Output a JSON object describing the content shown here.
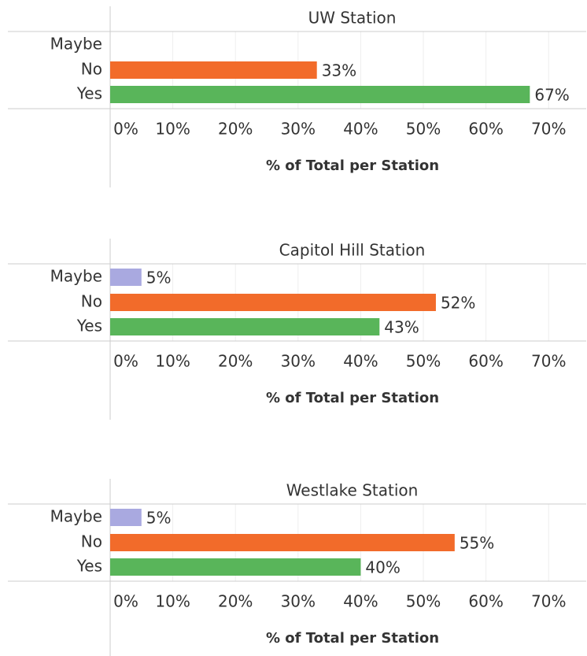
{
  "chart_data": [
    {
      "type": "bar",
      "title": "UW Station",
      "categories": [
        "Maybe",
        "No",
        "Yes"
      ],
      "values": [
        null,
        33,
        67
      ],
      "value_labels": [
        null,
        "33%",
        "67%"
      ],
      "colors": [
        "#a9a9e0",
        "#f26b2a",
        "#59b55a"
      ],
      "xlabel": "% of Total per Station",
      "xlim": [
        0,
        76
      ],
      "xticks": [
        {
          "value": 0,
          "label": "0%"
        },
        {
          "value": 10,
          "label": "10%"
        },
        {
          "value": 20,
          "label": "20%"
        },
        {
          "value": 30,
          "label": "30%"
        },
        {
          "value": 40,
          "label": "40%"
        },
        {
          "value": 50,
          "label": "50%"
        },
        {
          "value": 60,
          "label": "60%"
        },
        {
          "value": 70,
          "label": "70%"
        }
      ],
      "grid": true
    },
    {
      "type": "bar",
      "title": "Capitol Hill Station",
      "categories": [
        "Maybe",
        "No",
        "Yes"
      ],
      "values": [
        5,
        52,
        43
      ],
      "value_labels": [
        "5%",
        "52%",
        "43%"
      ],
      "colors": [
        "#a9a9e0",
        "#f26b2a",
        "#59b55a"
      ],
      "xlabel": "% of Total per Station",
      "xlim": [
        0,
        76
      ],
      "xticks": [
        {
          "value": 0,
          "label": "0%"
        },
        {
          "value": 10,
          "label": "10%"
        },
        {
          "value": 20,
          "label": "20%"
        },
        {
          "value": 30,
          "label": "30%"
        },
        {
          "value": 40,
          "label": "40%"
        },
        {
          "value": 50,
          "label": "50%"
        },
        {
          "value": 60,
          "label": "60%"
        },
        {
          "value": 70,
          "label": "70%"
        }
      ],
      "grid": true
    },
    {
      "type": "bar",
      "title": "Westlake Station",
      "categories": [
        "Maybe",
        "No",
        "Yes"
      ],
      "values": [
        5,
        55,
        40
      ],
      "value_labels": [
        "5%",
        "55%",
        "40%"
      ],
      "colors": [
        "#a9a9e0",
        "#f26b2a",
        "#59b55a"
      ],
      "xlabel": "% of Total per Station",
      "xlim": [
        0,
        76
      ],
      "xticks": [
        {
          "value": 0,
          "label": "0%"
        },
        {
          "value": 10,
          "label": "10%"
        },
        {
          "value": 20,
          "label": "20%"
        },
        {
          "value": 30,
          "label": "30%"
        },
        {
          "value": 40,
          "label": "40%"
        },
        {
          "value": 50,
          "label": "50%"
        },
        {
          "value": 60,
          "label": "60%"
        },
        {
          "value": 70,
          "label": "70%"
        }
      ],
      "grid": true
    }
  ]
}
